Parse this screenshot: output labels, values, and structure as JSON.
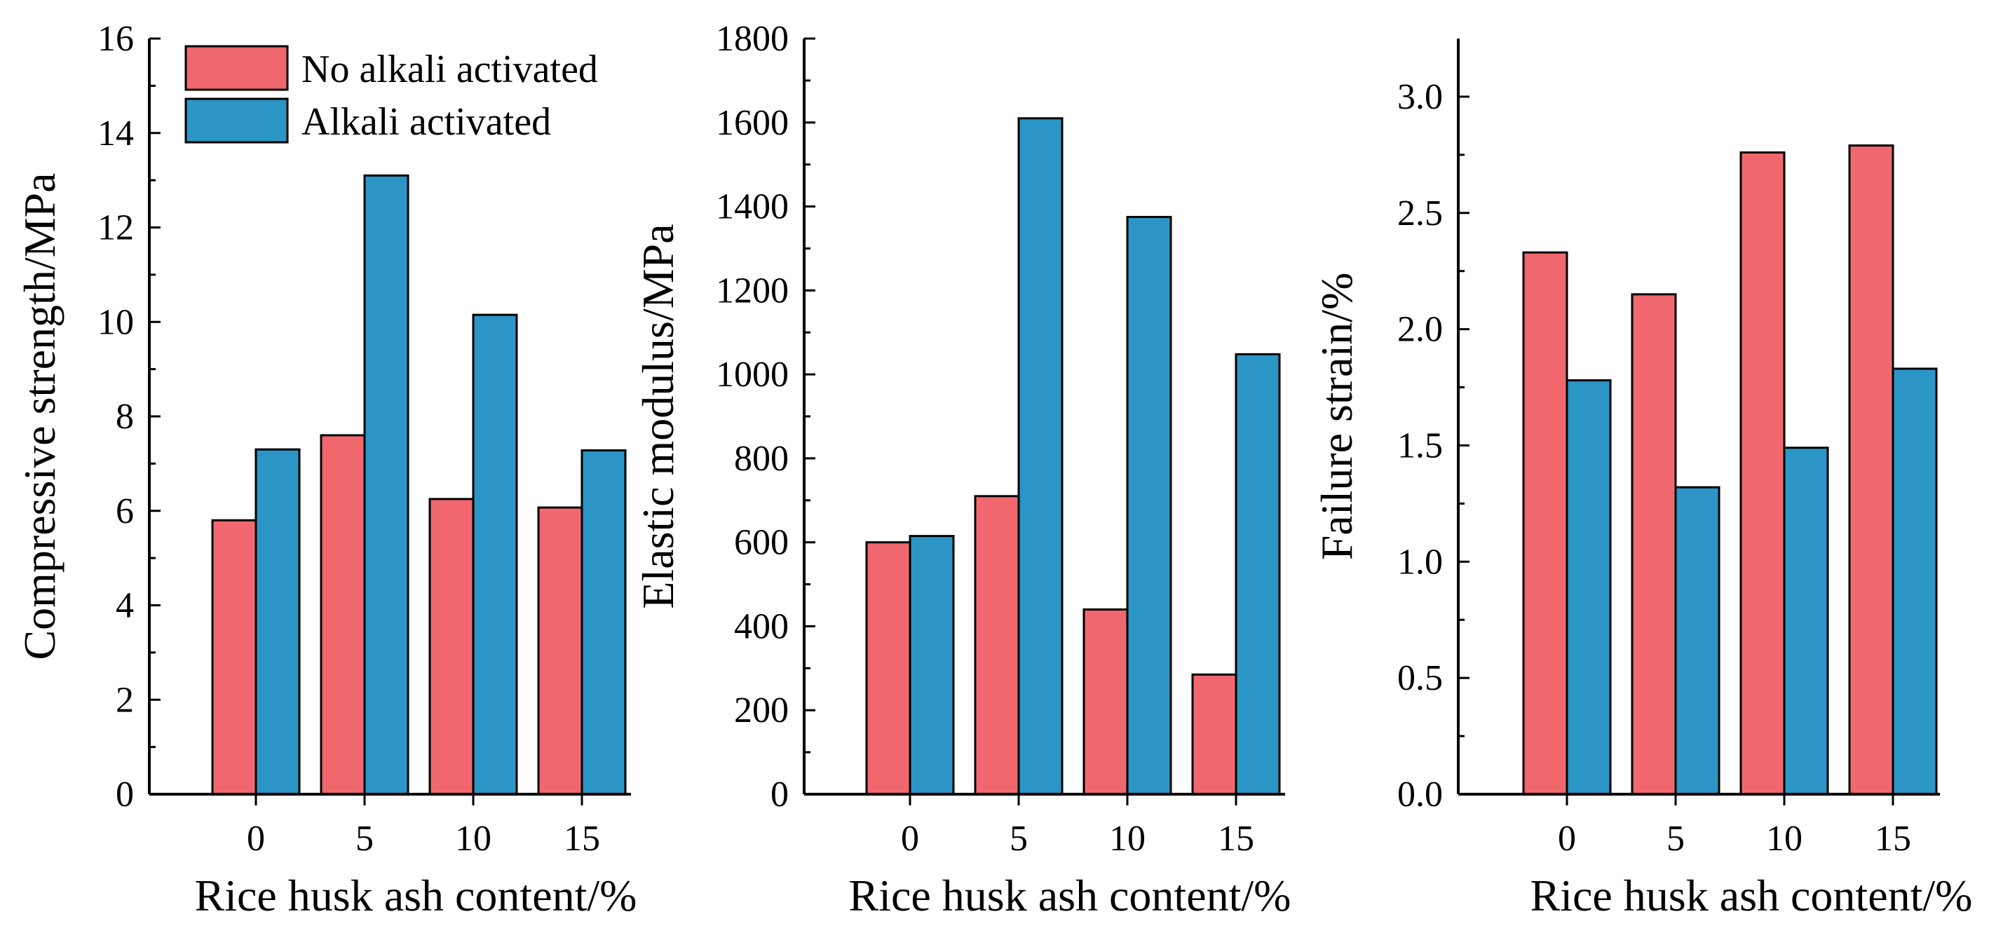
{
  "colors": {
    "no_alkali": "#f0686e",
    "alkali": "#2b96c6",
    "axis": "#000000"
  },
  "legend": {
    "items": [
      {
        "label": "No alkali activated",
        "color_key": "no_alkali"
      },
      {
        "label": "Alkali activated",
        "color_key": "alkali"
      }
    ]
  },
  "chart_data": [
    {
      "type": "bar",
      "title": "",
      "categories": [
        "0",
        "5",
        "10",
        "15"
      ],
      "series": [
        {
          "name": "No alkali activated",
          "values": [
            5.8,
            7.6,
            6.25,
            6.07
          ]
        },
        {
          "name": "Alkali activated",
          "values": [
            7.3,
            13.1,
            10.15,
            7.28
          ]
        }
      ],
      "xlabel": "Rice husk ash content/%",
      "ylabel": "Compressive strength/MPa",
      "ylim": [
        0,
        16
      ],
      "yticks": [
        "0",
        "2",
        "4",
        "6",
        "8",
        "10",
        "12",
        "14",
        "16"
      ],
      "yticks_num": [
        0,
        2,
        4,
        6,
        8,
        10,
        12,
        14,
        16
      ],
      "legend": "top-left"
    },
    {
      "type": "bar",
      "title": "",
      "categories": [
        "0",
        "5",
        "10",
        "15"
      ],
      "series": [
        {
          "name": "No alkali activated",
          "values": [
            600,
            710,
            440,
            285
          ]
        },
        {
          "name": "Alkali activated",
          "values": [
            615,
            1610,
            1375,
            1048
          ]
        }
      ],
      "xlabel": "Rice husk ash content/%",
      "ylabel": "Elastic modulus/MPa",
      "ylim": [
        0,
        1800
      ],
      "yticks": [
        "0",
        "200",
        "400",
        "600",
        "800",
        "1000",
        "1200",
        "1400",
        "1600",
        "1800"
      ],
      "yticks_num": [
        0,
        200,
        400,
        600,
        800,
        1000,
        1200,
        1400,
        1600,
        1800
      ]
    },
    {
      "type": "bar",
      "title": "",
      "categories": [
        "0",
        "5",
        "10",
        "15"
      ],
      "series": [
        {
          "name": "No alkali activated",
          "values": [
            2.33,
            2.15,
            2.76,
            2.79
          ]
        },
        {
          "name": "Alkali activated",
          "values": [
            1.78,
            1.32,
            1.49,
            1.83
          ]
        }
      ],
      "xlabel": "Rice husk ash content/%",
      "ylabel": "Failure strain/%",
      "ylim": [
        0,
        3.25
      ],
      "yticks": [
        "0.0",
        "0.5",
        "1.0",
        "1.5",
        "2.0",
        "2.5",
        "3.0"
      ],
      "yticks_num": [
        0,
        0.5,
        1.0,
        1.5,
        2.0,
        2.5,
        3.0
      ]
    }
  ]
}
